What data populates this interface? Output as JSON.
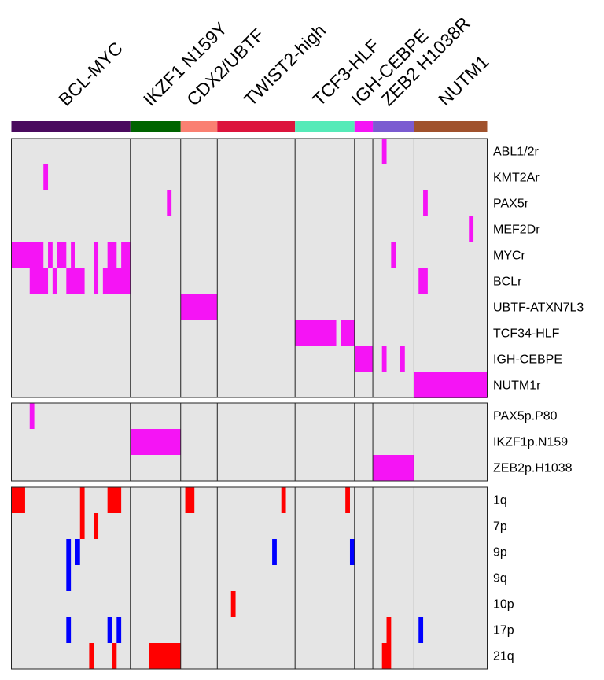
{
  "chart_data": {
    "type": "heatmap",
    "columns": 104,
    "groups": [
      {
        "name": "BCL-MYC",
        "start": 0,
        "end": 26,
        "color": "#4A0A5E"
      },
      {
        "name": "IKZF1 N159Y",
        "start": 26,
        "end": 37,
        "color": "#006400"
      },
      {
        "name": "CDX2/UBTF",
        "start": 37,
        "end": 45,
        "color": "#FA8072"
      },
      {
        "name": "TWIST2-high",
        "start": 45,
        "end": 62,
        "color": "#DC143C"
      },
      {
        "name": "TCF3-HLF",
        "start": 62,
        "end": 75,
        "color": "#55EAB8"
      },
      {
        "name": "IGH-CEBPE",
        "start": 75,
        "end": 79,
        "color": "#F514F5"
      },
      {
        "name": "ZEB2 H1038R",
        "start": 79,
        "end": 88,
        "color": "#7B5BD1"
      },
      {
        "name": "NUTM1",
        "start": 88,
        "end": 104,
        "color": "#A0522D"
      }
    ],
    "panels": [
      {
        "rows": [
          "ABL1/2r",
          "KMT2Ar",
          "PAX5r",
          "MEF2Dr",
          "MYCr",
          "BCLr",
          "UBTF-ATXN7L3",
          "TCF34-HLF",
          "IGH-CEBPE",
          "NUTM1r"
        ],
        "cells": [
          {
            "row": 0,
            "col": 81,
            "color": "#F514F5"
          },
          {
            "row": 1,
            "col": 7,
            "color": "#F514F5"
          },
          {
            "row": 2,
            "col": 34,
            "color": "#F514F5"
          },
          {
            "row": 2,
            "col": 90,
            "color": "#F514F5"
          },
          {
            "row": 3,
            "col": 100,
            "color": "#F514F5"
          },
          {
            "row": 4,
            "col": 0,
            "span": 7,
            "color": "#F514F5"
          },
          {
            "row": 4,
            "col": 8,
            "color": "#F514F5"
          },
          {
            "row": 4,
            "col": 10,
            "span": 2,
            "color": "#F514F5"
          },
          {
            "row": 4,
            "col": 13,
            "color": "#F514F5"
          },
          {
            "row": 4,
            "col": 18,
            "color": "#F514F5"
          },
          {
            "row": 4,
            "col": 21,
            "span": 2,
            "color": "#F514F5"
          },
          {
            "row": 4,
            "col": 24,
            "span": 2,
            "color": "#F514F5"
          },
          {
            "row": 4,
            "col": 83,
            "color": "#F514F5"
          },
          {
            "row": 5,
            "col": 4,
            "span": 4,
            "color": "#F514F5"
          },
          {
            "row": 5,
            "col": 9,
            "color": "#F514F5"
          },
          {
            "row": 5,
            "col": 12,
            "span": 4,
            "color": "#F514F5"
          },
          {
            "row": 5,
            "col": 18,
            "color": "#F514F5"
          },
          {
            "row": 5,
            "col": 20,
            "span": 6,
            "color": "#F514F5"
          },
          {
            "row": 5,
            "col": 89,
            "span": 2,
            "color": "#F514F5"
          },
          {
            "row": 6,
            "col": 37,
            "span": 8,
            "color": "#F514F5"
          },
          {
            "row": 7,
            "col": 62,
            "span": 9,
            "color": "#F514F5"
          },
          {
            "row": 7,
            "col": 72,
            "span": 3,
            "color": "#F514F5"
          },
          {
            "row": 8,
            "col": 75,
            "span": 4,
            "color": "#F514F5"
          },
          {
            "row": 8,
            "col": 81,
            "color": "#F514F5"
          },
          {
            "row": 8,
            "col": 85,
            "color": "#F514F5"
          },
          {
            "row": 9,
            "col": 88,
            "span": 16,
            "color": "#F514F5"
          }
        ]
      },
      {
        "rows": [
          "PAX5p.P80",
          "IKZF1p.N159",
          "ZEB2p.H1038"
        ],
        "cells": [
          {
            "row": 0,
            "col": 4,
            "color": "#F514F5"
          },
          {
            "row": 1,
            "col": 26,
            "span": 11,
            "color": "#F514F5"
          },
          {
            "row": 2,
            "col": 79,
            "span": 9,
            "color": "#F514F5"
          }
        ]
      },
      {
        "rows": [
          "1q",
          "7p",
          "9p",
          "9q",
          "10p",
          "17p",
          "21q"
        ],
        "cells": [
          {
            "row": 0,
            "col": 0,
            "span": 3,
            "color": "#FF0000"
          },
          {
            "row": 0,
            "col": 15,
            "color": "#FF0000"
          },
          {
            "row": 0,
            "col": 21,
            "span": 3,
            "color": "#FF0000"
          },
          {
            "row": 0,
            "col": 38,
            "span": 2,
            "color": "#FF0000"
          },
          {
            "row": 0,
            "col": 59,
            "color": "#FF0000"
          },
          {
            "row": 0,
            "col": 73,
            "color": "#FF0000"
          },
          {
            "row": 1,
            "col": 15,
            "color": "#FF0000"
          },
          {
            "row": 1,
            "col": 18,
            "color": "#FF0000"
          },
          {
            "row": 2,
            "col": 12,
            "color": "#0000FF"
          },
          {
            "row": 2,
            "col": 14,
            "color": "#0000FF"
          },
          {
            "row": 2,
            "col": 57,
            "color": "#0000FF"
          },
          {
            "row": 2,
            "col": 74,
            "color": "#0000FF"
          },
          {
            "row": 3,
            "col": 12,
            "color": "#0000FF"
          },
          {
            "row": 4,
            "col": 48,
            "color": "#FF0000"
          },
          {
            "row": 5,
            "col": 12,
            "color": "#0000FF"
          },
          {
            "row": 5,
            "col": 21,
            "color": "#0000FF"
          },
          {
            "row": 5,
            "col": 23,
            "color": "#0000FF"
          },
          {
            "row": 5,
            "col": 82,
            "color": "#FF0000"
          },
          {
            "row": 5,
            "col": 89,
            "color": "#0000FF"
          },
          {
            "row": 6,
            "col": 17,
            "color": "#FF0000"
          },
          {
            "row": 6,
            "col": 22,
            "color": "#FF0000"
          },
          {
            "row": 6,
            "col": 30,
            "span": 7,
            "color": "#FF0000"
          },
          {
            "row": 6,
            "col": 81,
            "span": 2,
            "color": "#FF0000"
          }
        ]
      }
    ],
    "background_color": "#E5E5E5",
    "grid": false,
    "legend": "none"
  }
}
